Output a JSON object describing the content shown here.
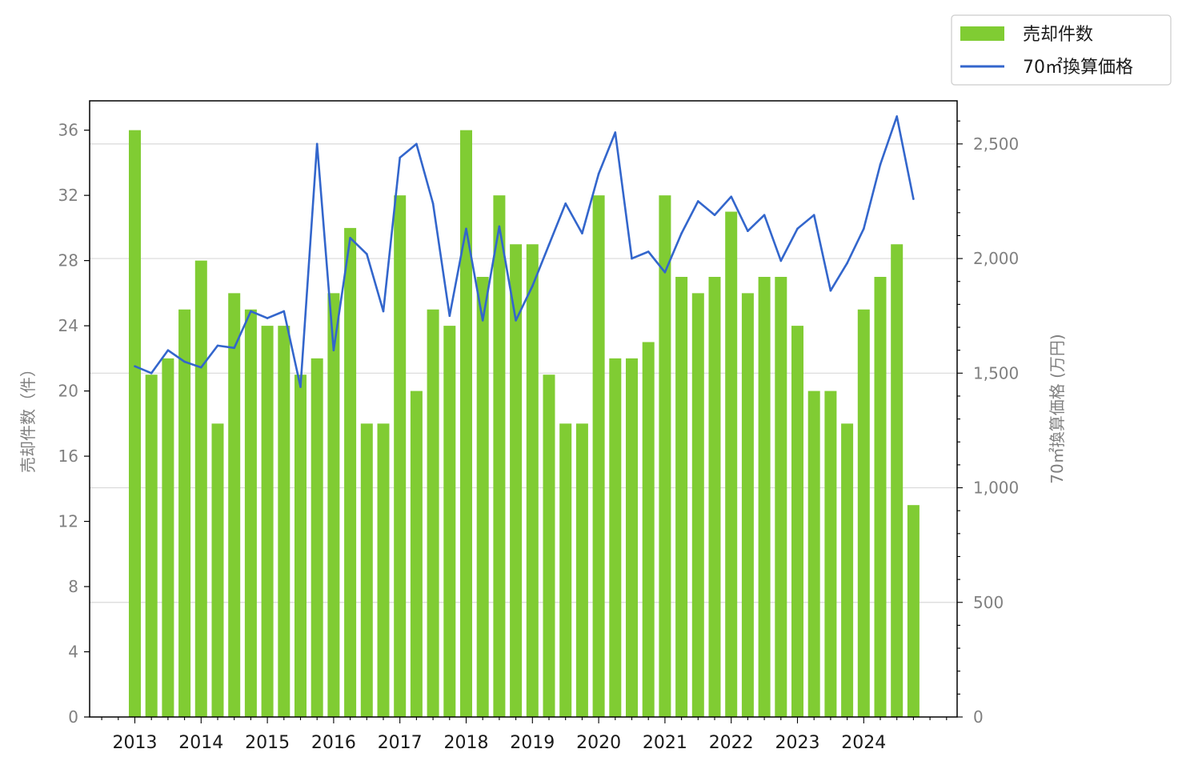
{
  "chart_data": {
    "type": "bar+line",
    "x_labels": [
      "2013",
      "2014",
      "2015",
      "2016",
      "2017",
      "2018",
      "2019",
      "2020",
      "2021",
      "2022",
      "2023",
      "2024"
    ],
    "series": [
      {
        "name": "売却件数",
        "type": "bar",
        "axis": "left",
        "color": "#80cc33",
        "values": [
          36,
          21,
          22,
          25,
          28,
          18,
          26,
          25,
          24,
          24,
          21,
          22,
          26,
          30,
          18,
          18,
          32,
          20,
          25,
          24,
          36,
          27,
          32,
          29,
          29,
          21,
          18,
          18,
          32,
          22,
          22,
          23,
          32,
          27,
          26,
          27,
          31,
          26,
          27,
          27,
          24,
          20,
          20,
          18,
          25,
          27,
          29,
          13
        ]
      },
      {
        "name": "70㎡換算価格",
        "type": "line",
        "axis": "right",
        "color": "#3366cc",
        "values": [
          1530,
          1500,
          1600,
          1550,
          1525,
          1620,
          1610,
          1770,
          1740,
          1770,
          1440,
          2500,
          1600,
          2090,
          2020,
          1770,
          2440,
          2500,
          2240,
          1750,
          2130,
          1730,
          2140,
          1730,
          1880,
          2060,
          2240,
          2110,
          2370,
          2550,
          2000,
          2030,
          1940,
          2110,
          2250,
          2190,
          2270,
          2120,
          2190,
          1990,
          2130,
          2190,
          1860,
          1980,
          2130,
          2410,
          2620,
          2260
        ]
      }
    ],
    "left_axis": {
      "label": "売却件数（件）",
      "min": 0,
      "max": 37.8,
      "ticks": [
        0,
        4,
        8,
        12,
        16,
        20,
        24,
        28,
        32,
        36
      ],
      "tick_labels": [
        "0",
        "4",
        "8",
        "12",
        "16",
        "20",
        "24",
        "28",
        "32",
        "36"
      ]
    },
    "right_axis": {
      "label": "70㎡換算価格 (万円)",
      "min": 0,
      "max": 2688,
      "ticks": [
        0,
        500,
        1000,
        1500,
        2000,
        2500
      ],
      "tick_labels": [
        "0",
        "500",
        "1,000",
        "1,500",
        "2,000",
        "2,500"
      ],
      "minor_step": 100
    },
    "grid": "horizontal, right axis",
    "legend_position": "top-right, outside",
    "colors": {
      "bar": "#80cc33",
      "line": "#3366cc",
      "grid": "#d9d9d9",
      "tick": "#808080"
    }
  }
}
